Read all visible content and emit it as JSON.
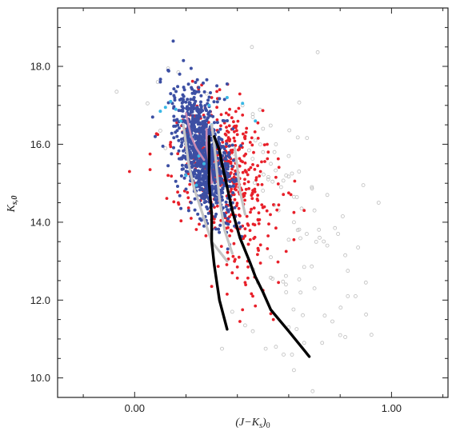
{
  "chart_data": {
    "type": "scatter",
    "xlabel_main": "(J−K",
    "xlabel_sub1": "s",
    "xlabel_close": ")",
    "xlabel_sub2": "0",
    "ylabel_main": "K",
    "ylabel_sub": "s,0",
    "xlim": [
      -0.3,
      1.22
    ],
    "ylim": [
      19.5,
      9.5
    ],
    "y_inverted": true,
    "x_ticks": [
      0.0,
      1.0
    ],
    "x_tick_labels": [
      "0.00",
      "1.00"
    ],
    "y_ticks": [
      10.0,
      12.0,
      14.0,
      16.0,
      18.0
    ],
    "y_tick_labels": [
      "10.0",
      "12.0",
      "14.0",
      "16.0",
      "18.0"
    ],
    "grid": false,
    "legend": "none",
    "colors": {
      "gray_points": "#bdbdbd",
      "red_points": "#e8202a",
      "blue_points": "#3c4fa3",
      "cyan_points": "#39b8e6",
      "black_line": "#000000",
      "gray_line": "#c4c4c4",
      "pink_line": "#c98ab3"
    },
    "series": [
      {
        "kind": "points",
        "style": "gray-open",
        "points": [
          [
            0.62,
            10.2
          ],
          [
            0.58,
            10.6
          ],
          [
            0.55,
            10.8
          ],
          [
            0.66,
            10.9
          ],
          [
            0.73,
            10.9
          ],
          [
            0.8,
            11.1
          ],
          [
            0.82,
            11.05
          ],
          [
            0.77,
            11.45
          ],
          [
            0.6,
            11.3
          ],
          [
            0.51,
            10.75
          ],
          [
            0.46,
            11.2
          ],
          [
            0.43,
            11.35
          ],
          [
            0.74,
            11.6
          ],
          [
            0.83,
            12.1
          ],
          [
            0.86,
            12.1
          ],
          [
            0.9,
            12.45
          ],
          [
            0.83,
            12.75
          ],
          [
            0.7,
            12.3
          ],
          [
            0.66,
            12.85
          ],
          [
            0.72,
            13.6
          ],
          [
            0.75,
            13.4
          ],
          [
            0.82,
            13.15
          ],
          [
            0.87,
            13.35
          ],
          [
            0.78,
            13.85
          ],
          [
            0.81,
            14.15
          ],
          [
            0.7,
            14.3
          ],
          [
            0.67,
            13.7
          ],
          [
            0.62,
            14.0
          ],
          [
            0.75,
            14.7
          ],
          [
            0.69,
            14.9
          ],
          [
            0.89,
            14.95
          ],
          [
            0.95,
            14.5
          ],
          [
            0.62,
            14.65
          ],
          [
            0.59,
            15.2
          ],
          [
            0.57,
            14.9
          ],
          [
            0.53,
            15.5
          ],
          [
            0.5,
            15.8
          ],
          [
            0.47,
            16.1
          ],
          [
            0.55,
            16.0
          ],
          [
            0.6,
            15.7
          ],
          [
            0.34,
            10.75
          ],
          [
            -0.07,
            17.35
          ],
          [
            0.05,
            17.05
          ],
          [
            0.09,
            17.6
          ],
          [
            0.13,
            17.95
          ],
          [
            0.17,
            17.85
          ],
          [
            0.1,
            16.35
          ],
          [
            0.12,
            15.9
          ],
          [
            0.46,
            16.7
          ],
          [
            0.5,
            16.4
          ],
          [
            0.28,
            17.3
          ],
          [
            0.42,
            17.0
          ],
          [
            0.52,
            15.1
          ],
          [
            0.56,
            14.3
          ],
          [
            0.64,
            15.3
          ],
          [
            0.38,
            11.7
          ],
          [
            0.48,
            12.45
          ],
          [
            0.53,
            13.1
          ],
          [
            0.59,
            12.2
          ],
          [
            0.6,
            13.55
          ],
          [
            0.65,
            14.35
          ]
        ],
        "generated": {
          "count": 50,
          "center": [
            0.62,
            14.2
          ],
          "spread": [
            0.12,
            1.8
          ],
          "seed": 11
        }
      },
      {
        "kind": "points",
        "style": "red-filled",
        "points": [
          [
            0.54,
            11.5
          ],
          [
            0.47,
            11.85
          ],
          [
            0.46,
            12.1
          ],
          [
            0.53,
            11.65
          ],
          [
            0.5,
            12.25
          ],
          [
            0.43,
            12.45
          ],
          [
            0.4,
            12.85
          ],
          [
            0.49,
            12.95
          ],
          [
            0.56,
            12.45
          ],
          [
            0.59,
            13.25
          ],
          [
            0.62,
            13.55
          ],
          [
            0.55,
            13.85
          ],
          [
            0.62,
            14.25
          ],
          [
            0.66,
            14.3
          ],
          [
            0.6,
            14.75
          ],
          [
            0.55,
            15.15
          ],
          [
            0.49,
            15.3
          ],
          [
            0.52,
            15.8
          ],
          [
            0.45,
            16.05
          ],
          [
            0.48,
            16.55
          ],
          [
            0.42,
            16.75
          ],
          [
            0.4,
            16.25
          ],
          [
            0.35,
            16.55
          ],
          [
            0.32,
            16.95
          ],
          [
            0.3,
            17.2
          ],
          [
            0.06,
            15.35
          ],
          [
            -0.02,
            15.3
          ],
          [
            0.06,
            15.75
          ],
          [
            0.09,
            16.25
          ],
          [
            0.14,
            16.05
          ],
          [
            0.13,
            15.2
          ],
          [
            0.17,
            14.5
          ],
          [
            0.22,
            14.1
          ],
          [
            0.3,
            12.35
          ],
          [
            0.36,
            12.15
          ],
          [
            0.41,
            11.45
          ],
          [
            0.42,
            11.75
          ],
          [
            0.38,
            12.7
          ],
          [
            0.44,
            13.0
          ],
          [
            0.45,
            13.55
          ],
          [
            0.42,
            13.9
          ],
          [
            0.37,
            13.65
          ]
        ],
        "generated": {
          "count": 430,
          "center": [
            0.36,
            15.1
          ],
          "spread": [
            0.085,
            1.0
          ],
          "seed": 23
        }
      },
      {
        "kind": "points",
        "style": "blue-filled",
        "points": [
          [
            0.15,
            18.65
          ],
          [
            0.19,
            18.15
          ],
          [
            0.22,
            17.95
          ],
          [
            0.13,
            17.9
          ],
          [
            0.1,
            17.6
          ],
          [
            0.14,
            17.3
          ],
          [
            0.32,
            17.5
          ],
          [
            0.35,
            17.15
          ],
          [
            0.11,
            15.95
          ],
          [
            0.13,
            15.45
          ],
          [
            0.16,
            15.05
          ],
          [
            0.2,
            14.85
          ],
          [
            0.22,
            14.5
          ],
          [
            0.18,
            14.35
          ],
          [
            0.26,
            14.05
          ],
          [
            0.27,
            13.9
          ],
          [
            0.36,
            17.55
          ],
          [
            0.07,
            16.7
          ],
          [
            0.08,
            16.2
          ]
        ],
        "generated": {
          "count": 980,
          "center": [
            0.27,
            15.75
          ],
          "spread": [
            0.045,
            0.75
          ],
          "seed": 37
        }
      },
      {
        "kind": "points",
        "style": "cyan-filled",
        "points": [
          [
            0.1,
            16.85
          ],
          [
            0.12,
            16.95
          ],
          [
            0.14,
            17.1
          ],
          [
            0.18,
            16.6
          ],
          [
            0.22,
            16.2
          ],
          [
            0.25,
            15.7
          ],
          [
            0.28,
            16.1
          ],
          [
            0.3,
            16.5
          ],
          [
            0.36,
            17.2
          ],
          [
            0.42,
            17.05
          ],
          [
            0.47,
            16.6
          ],
          [
            0.2,
            15.2
          ],
          [
            0.24,
            14.95
          ],
          [
            0.27,
            15.5
          ],
          [
            0.16,
            16.9
          ],
          [
            0.29,
            17.0
          ]
        ]
      },
      {
        "kind": "line",
        "style": "gray-line",
        "points": [
          [
            0.36,
            13.0
          ],
          [
            0.3,
            13.5
          ],
          [
            0.27,
            14.1
          ],
          [
            0.23,
            14.9
          ],
          [
            0.21,
            15.5
          ],
          [
            0.2,
            16.0
          ],
          [
            0.19,
            16.5
          ]
        ]
      },
      {
        "kind": "line",
        "style": "gray-line",
        "points": [
          [
            0.38,
            13.2
          ],
          [
            0.35,
            13.8
          ],
          [
            0.33,
            14.6
          ],
          [
            0.32,
            15.3
          ],
          [
            0.31,
            16.0
          ],
          [
            0.3,
            16.5
          ]
        ]
      },
      {
        "kind": "line",
        "style": "gray-line",
        "points": [
          [
            0.43,
            14.2
          ],
          [
            0.41,
            14.8
          ],
          [
            0.4,
            15.4
          ],
          [
            0.39,
            15.9
          ]
        ]
      },
      {
        "kind": "line",
        "style": "pink-line",
        "points": [
          [
            0.27,
            15.6
          ],
          [
            0.24,
            15.9
          ],
          [
            0.22,
            16.2
          ],
          [
            0.21,
            16.5
          ],
          [
            0.2,
            16.8
          ]
        ]
      },
      {
        "kind": "line",
        "style": "pink-line",
        "points": [
          [
            0.3,
            15.0
          ],
          [
            0.29,
            15.5
          ],
          [
            0.28,
            16.0
          ],
          [
            0.28,
            16.4
          ]
        ]
      },
      {
        "kind": "line",
        "style": "black-line",
        "points": [
          [
            0.36,
            11.25
          ],
          [
            0.33,
            12.0
          ],
          [
            0.31,
            12.9
          ],
          [
            0.3,
            13.5
          ],
          [
            0.3,
            14.2
          ],
          [
            0.29,
            15.0
          ],
          [
            0.29,
            15.6
          ],
          [
            0.29,
            16.2
          ]
        ]
      },
      {
        "kind": "line",
        "style": "black-line",
        "points": [
          [
            0.68,
            10.55
          ],
          [
            0.6,
            11.2
          ],
          [
            0.53,
            11.75
          ],
          [
            0.5,
            12.2
          ],
          [
            0.47,
            12.6
          ],
          [
            0.45,
            12.95
          ],
          [
            0.41,
            13.6
          ],
          [
            0.38,
            14.3
          ],
          [
            0.36,
            14.9
          ],
          [
            0.34,
            15.5
          ],
          [
            0.33,
            15.85
          ],
          [
            0.31,
            16.2
          ]
        ]
      }
    ]
  }
}
